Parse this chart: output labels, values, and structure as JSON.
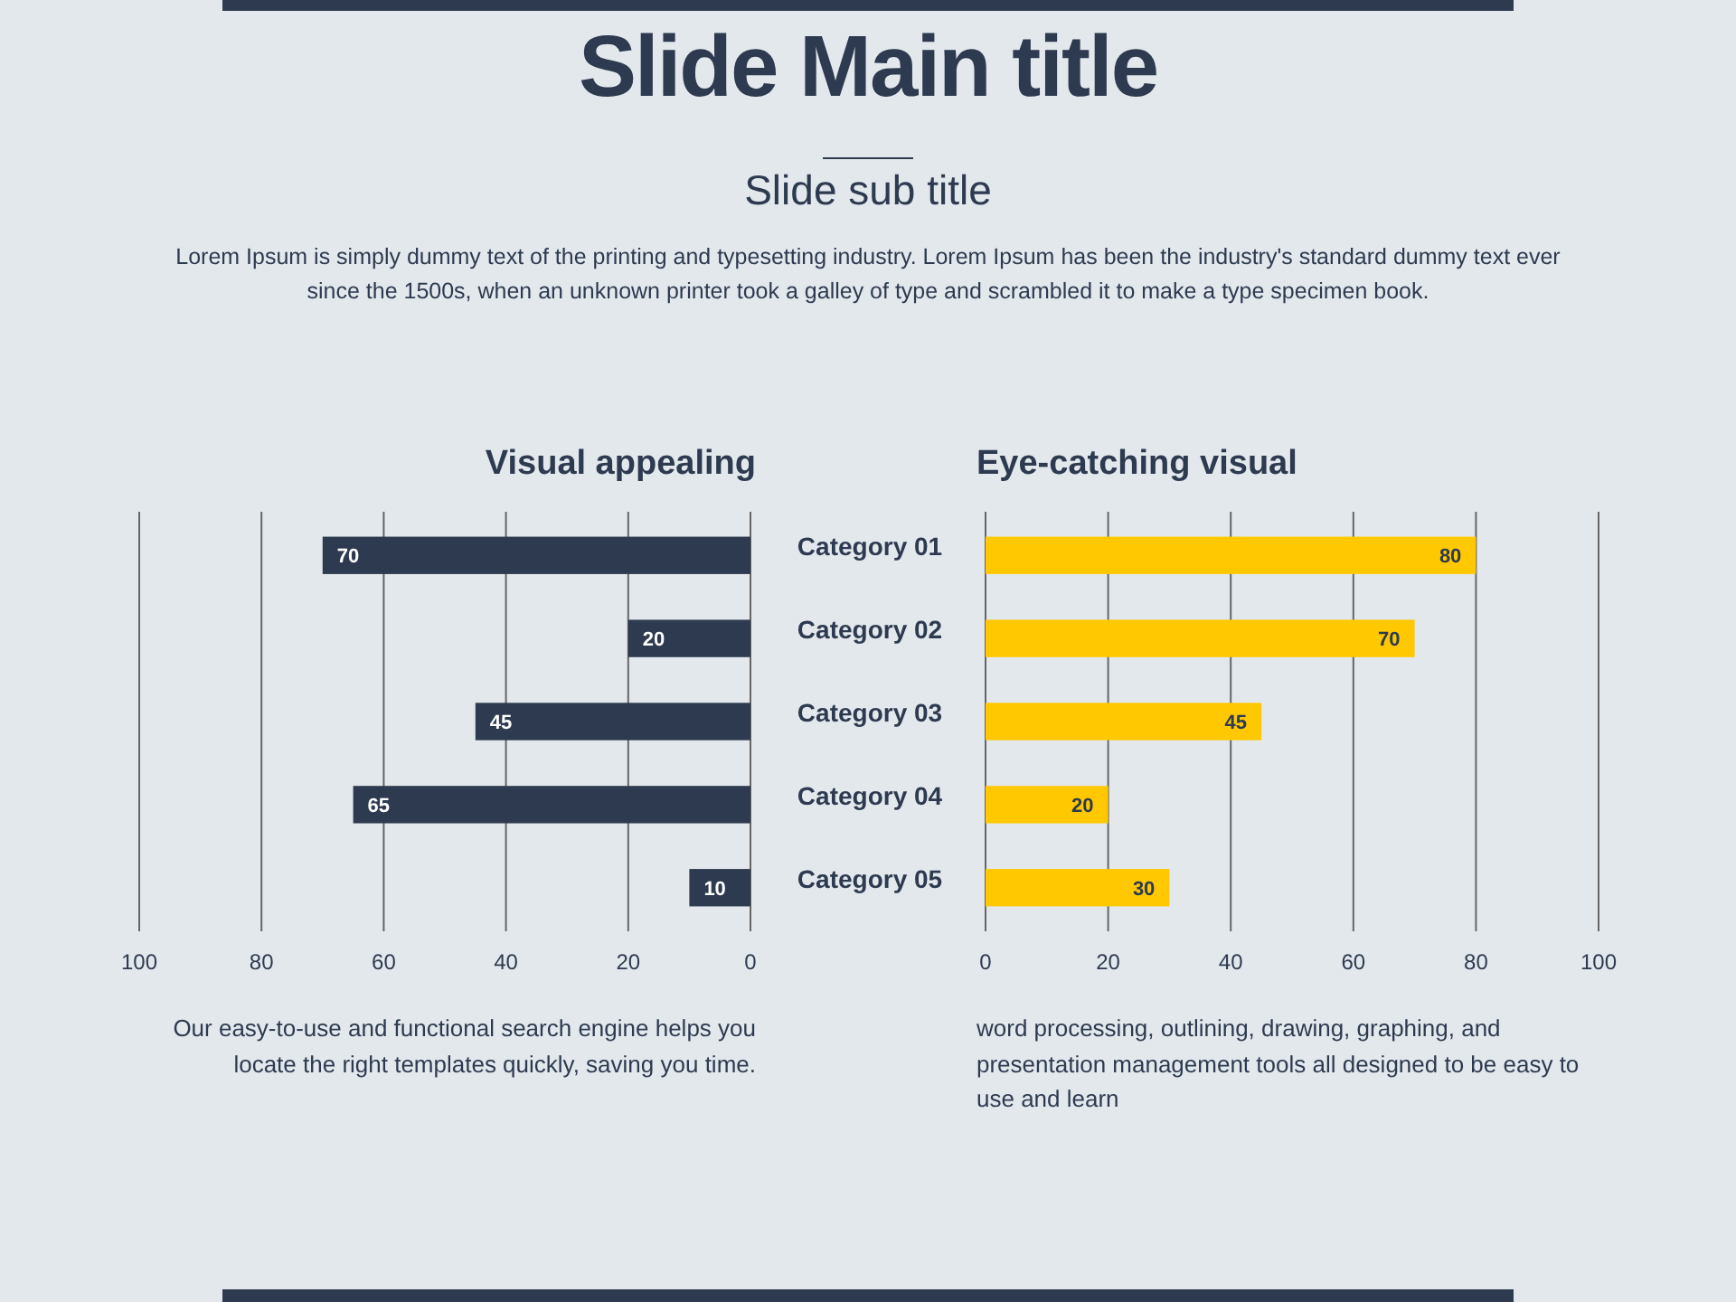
{
  "chart_data": [
    {
      "type": "other",
      "title": "Slide Main title",
      "subtitle": "Slide sub title",
      "annotations": [
        "Lorem Ipsum is simply dummy text of the printing and typesetting industry. Lorem Ipsum has been the industry's standard dummy text ever since the 1500s, when an unknown printer took a galley of type and scrambled it to make a type specimen book."
      ]
    },
    {
      "type": "bar",
      "orientation": "horizontal",
      "title": "Visual appealing",
      "categories": [
        null,
        null,
        null,
        null,
        null
      ],
      "values": [
        70,
        20,
        45,
        65,
        10
      ],
      "color": "#2d3a4f",
      "xlim": [
        100,
        0
      ],
      "xticks": [
        100,
        80,
        60,
        40,
        20,
        0
      ],
      "grid": "x",
      "data_labels": true,
      "annotations": [
        "Our easy-to-use and functional search engine helps you locate the right templates quickly, saving you time."
      ]
    },
    {
      "type": "bar",
      "orientation": "horizontal",
      "title": "Eye-catching visual",
      "categories": [
        "Category 01",
        "Category 02",
        "Category 03",
        "Category 04",
        "Category 05"
      ],
      "values": [
        80,
        70,
        45,
        20,
        30
      ],
      "color": "#ffc800",
      "xlim": [
        0,
        100
      ],
      "xticks": [
        0,
        20,
        40,
        60,
        80,
        100
      ],
      "grid": "x",
      "data_labels": true,
      "annotations": [
        "word processing, outlining, drawing, graphing, and presentation management tools all designed to be easy to use and learn"
      ]
    }
  ]
}
